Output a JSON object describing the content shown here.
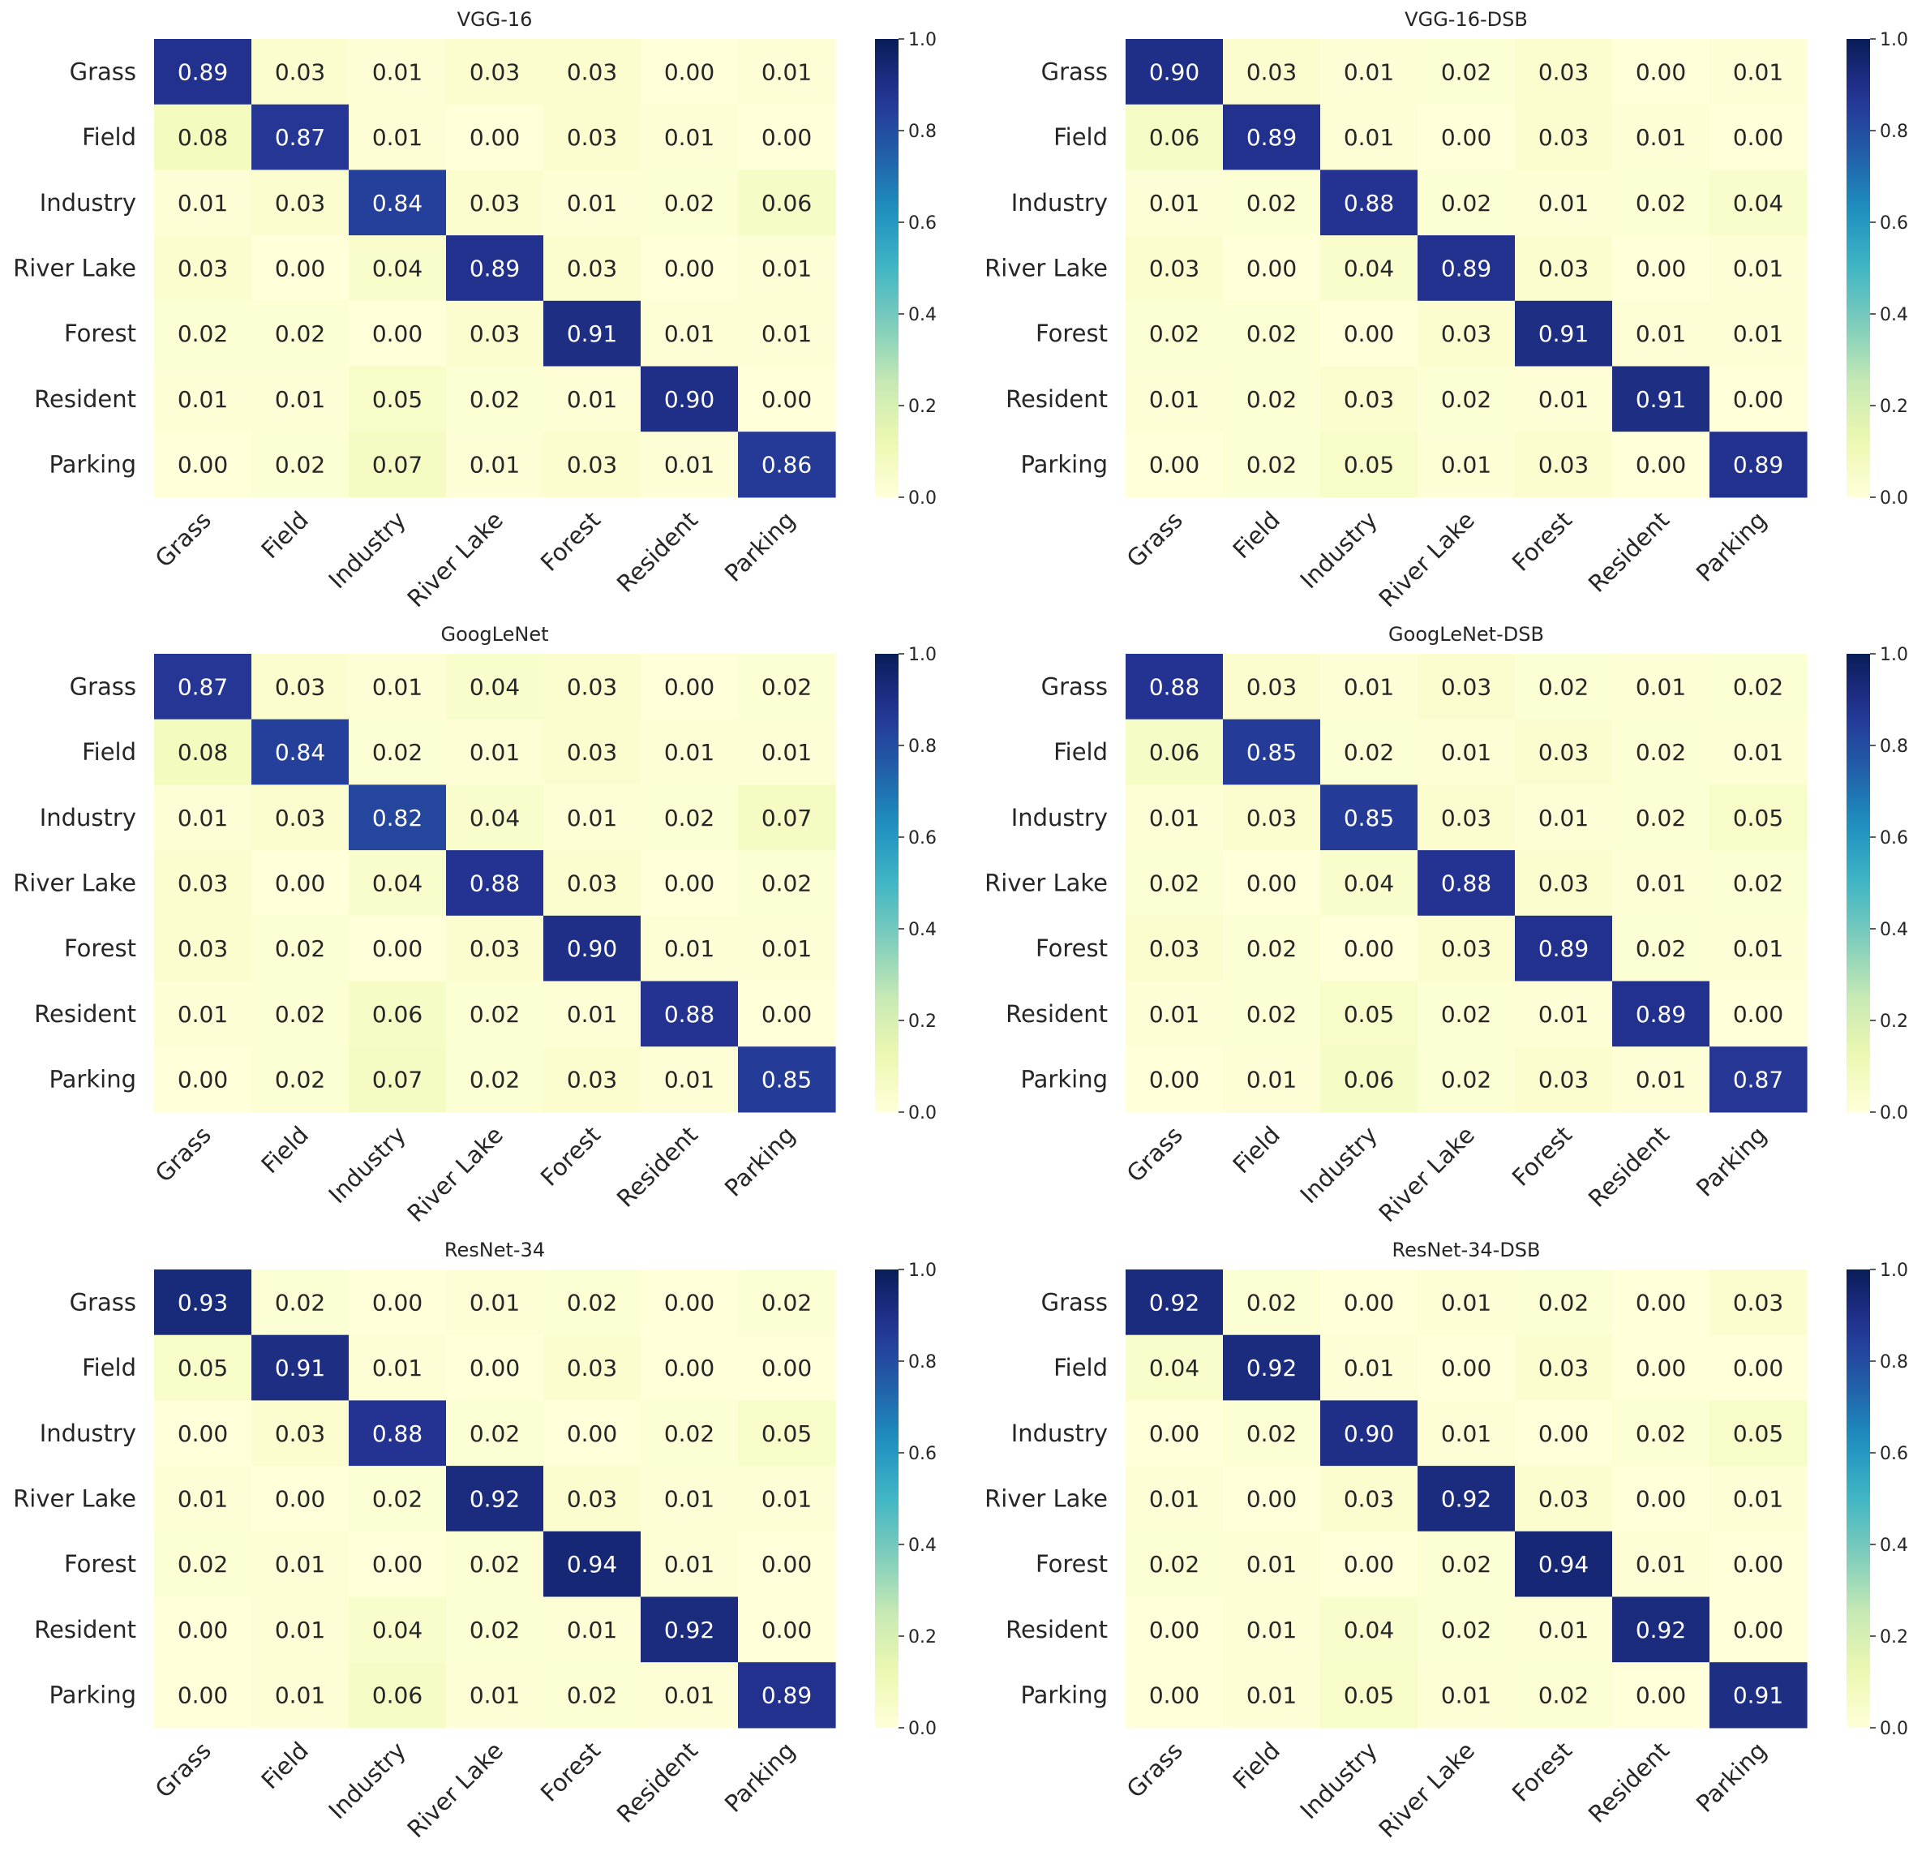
{
  "chart_data": [
    {
      "type": "heatmap",
      "title": "VGG-16",
      "rows": [
        "Grass",
        "Field",
        "Industry",
        "River Lake",
        "Forest",
        "Resident",
        "Parking"
      ],
      "columns": [
        "Grass",
        "Field",
        "Industry",
        "River Lake",
        "Forest",
        "Resident",
        "Parking"
      ],
      "values": [
        [
          0.89,
          0.03,
          0.01,
          0.03,
          0.03,
          0.0,
          0.01
        ],
        [
          0.08,
          0.87,
          0.01,
          0.0,
          0.03,
          0.01,
          0.0
        ],
        [
          0.01,
          0.03,
          0.84,
          0.03,
          0.01,
          0.02,
          0.06
        ],
        [
          0.03,
          0.0,
          0.04,
          0.89,
          0.03,
          0.0,
          0.01
        ],
        [
          0.02,
          0.02,
          0.0,
          0.03,
          0.91,
          0.01,
          0.01
        ],
        [
          0.01,
          0.01,
          0.05,
          0.02,
          0.01,
          0.9,
          0.0
        ],
        [
          0.0,
          0.02,
          0.07,
          0.01,
          0.03,
          0.01,
          0.86
        ]
      ],
      "colorbar": {
        "range": [
          0.0,
          1.0
        ],
        "ticks": [
          "0.0",
          "0.2",
          "0.4",
          "0.6",
          "0.8",
          "1.0"
        ]
      }
    },
    {
      "type": "heatmap",
      "title": "VGG-16-DSB",
      "rows": [
        "Grass",
        "Field",
        "Industry",
        "River Lake",
        "Forest",
        "Resident",
        "Parking"
      ],
      "columns": [
        "Grass",
        "Field",
        "Industry",
        "River Lake",
        "Forest",
        "Resident",
        "Parking"
      ],
      "values": [
        [
          0.9,
          0.03,
          0.01,
          0.02,
          0.03,
          0.0,
          0.01
        ],
        [
          0.06,
          0.89,
          0.01,
          0.0,
          0.03,
          0.01,
          0.0
        ],
        [
          0.01,
          0.02,
          0.88,
          0.02,
          0.01,
          0.02,
          0.04
        ],
        [
          0.03,
          0.0,
          0.04,
          0.89,
          0.03,
          0.0,
          0.01
        ],
        [
          0.02,
          0.02,
          0.0,
          0.03,
          0.91,
          0.01,
          0.01
        ],
        [
          0.01,
          0.02,
          0.03,
          0.02,
          0.01,
          0.91,
          0.0
        ],
        [
          0.0,
          0.02,
          0.05,
          0.01,
          0.03,
          0.0,
          0.89
        ]
      ],
      "colorbar": {
        "range": [
          0.0,
          1.0
        ],
        "ticks": [
          "0.0",
          "0.2",
          "0.4",
          "0.6",
          "0.8",
          "1.0"
        ]
      }
    },
    {
      "type": "heatmap",
      "title": "GoogLeNet",
      "rows": [
        "Grass",
        "Field",
        "Industry",
        "River Lake",
        "Forest",
        "Resident",
        "Parking"
      ],
      "columns": [
        "Grass",
        "Field",
        "Industry",
        "River Lake",
        "Forest",
        "Resident",
        "Parking"
      ],
      "values": [
        [
          0.87,
          0.03,
          0.01,
          0.04,
          0.03,
          0.0,
          0.02
        ],
        [
          0.08,
          0.84,
          0.02,
          0.01,
          0.03,
          0.01,
          0.01
        ],
        [
          0.01,
          0.03,
          0.82,
          0.04,
          0.01,
          0.02,
          0.07
        ],
        [
          0.03,
          0.0,
          0.04,
          0.88,
          0.03,
          0.0,
          0.02
        ],
        [
          0.03,
          0.02,
          0.0,
          0.03,
          0.9,
          0.01,
          0.01
        ],
        [
          0.01,
          0.02,
          0.06,
          0.02,
          0.01,
          0.88,
          0.0
        ],
        [
          0.0,
          0.02,
          0.07,
          0.02,
          0.03,
          0.01,
          0.85
        ]
      ],
      "colorbar": {
        "range": [
          0.0,
          1.0
        ],
        "ticks": [
          "0.0",
          "0.2",
          "0.4",
          "0.6",
          "0.8",
          "1.0"
        ]
      }
    },
    {
      "type": "heatmap",
      "title": "GoogLeNet-DSB",
      "rows": [
        "Grass",
        "Field",
        "Industry",
        "River Lake",
        "Forest",
        "Resident",
        "Parking"
      ],
      "columns": [
        "Grass",
        "Field",
        "Industry",
        "River Lake",
        "Forest",
        "Resident",
        "Parking"
      ],
      "values": [
        [
          0.88,
          0.03,
          0.01,
          0.03,
          0.02,
          0.01,
          0.02
        ],
        [
          0.06,
          0.85,
          0.02,
          0.01,
          0.03,
          0.02,
          0.01
        ],
        [
          0.01,
          0.03,
          0.85,
          0.03,
          0.01,
          0.02,
          0.05
        ],
        [
          0.02,
          0.0,
          0.04,
          0.88,
          0.03,
          0.01,
          0.02
        ],
        [
          0.03,
          0.02,
          0.0,
          0.03,
          0.89,
          0.02,
          0.01
        ],
        [
          0.01,
          0.02,
          0.05,
          0.02,
          0.01,
          0.89,
          0.0
        ],
        [
          0.0,
          0.01,
          0.06,
          0.02,
          0.03,
          0.01,
          0.87
        ]
      ],
      "colorbar": {
        "range": [
          0.0,
          1.0
        ],
        "ticks": [
          "0.0",
          "0.2",
          "0.4",
          "0.6",
          "0.8",
          "1.0"
        ]
      }
    },
    {
      "type": "heatmap",
      "title": "ResNet-34",
      "rows": [
        "Grass",
        "Field",
        "Industry",
        "River Lake",
        "Forest",
        "Resident",
        "Parking"
      ],
      "columns": [
        "Grass",
        "Field",
        "Industry",
        "River Lake",
        "Forest",
        "Resident",
        "Parking"
      ],
      "values": [
        [
          0.93,
          0.02,
          0.0,
          0.01,
          0.02,
          0.0,
          0.02
        ],
        [
          0.05,
          0.91,
          0.01,
          0.0,
          0.03,
          0.0,
          0.0
        ],
        [
          0.0,
          0.03,
          0.88,
          0.02,
          0.0,
          0.02,
          0.05
        ],
        [
          0.01,
          0.0,
          0.02,
          0.92,
          0.03,
          0.01,
          0.01
        ],
        [
          0.02,
          0.01,
          0.0,
          0.02,
          0.94,
          0.01,
          0.0
        ],
        [
          0.0,
          0.01,
          0.04,
          0.02,
          0.01,
          0.92,
          0.0
        ],
        [
          0.0,
          0.01,
          0.06,
          0.01,
          0.02,
          0.01,
          0.89
        ]
      ],
      "colorbar": {
        "range": [
          0.0,
          1.0
        ],
        "ticks": [
          "0.0",
          "0.2",
          "0.4",
          "0.6",
          "0.8",
          "1.0"
        ]
      }
    },
    {
      "type": "heatmap",
      "title": "ResNet-34-DSB",
      "rows": [
        "Grass",
        "Field",
        "Industry",
        "River Lake",
        "Forest",
        "Resident",
        "Parking"
      ],
      "columns": [
        "Grass",
        "Field",
        "Industry",
        "River Lake",
        "Forest",
        "Resident",
        "Parking"
      ],
      "values": [
        [
          0.92,
          0.02,
          0.0,
          0.01,
          0.02,
          0.0,
          0.03
        ],
        [
          0.04,
          0.92,
          0.01,
          0.0,
          0.03,
          0.0,
          0.0
        ],
        [
          0.0,
          0.02,
          0.9,
          0.01,
          0.0,
          0.02,
          0.05
        ],
        [
          0.01,
          0.0,
          0.03,
          0.92,
          0.03,
          0.0,
          0.01
        ],
        [
          0.02,
          0.01,
          0.0,
          0.02,
          0.94,
          0.01,
          0.0
        ],
        [
          0.0,
          0.01,
          0.04,
          0.02,
          0.01,
          0.92,
          0.0
        ],
        [
          0.0,
          0.01,
          0.05,
          0.01,
          0.02,
          0.0,
          0.91
        ]
      ],
      "colorbar": {
        "range": [
          0.0,
          1.0
        ],
        "ticks": [
          "0.0",
          "0.2",
          "0.4",
          "0.6",
          "0.8",
          "1.0"
        ]
      }
    }
  ]
}
